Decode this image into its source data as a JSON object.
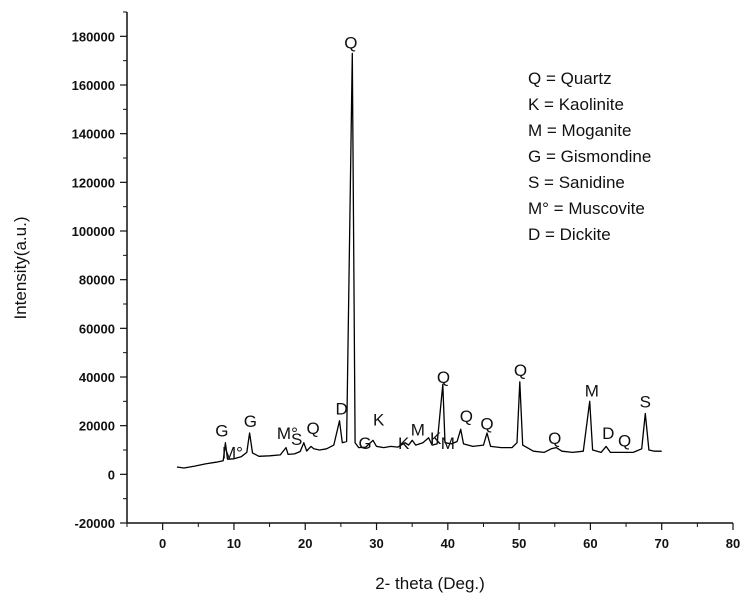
{
  "chart_data": {
    "type": "line",
    "xlabel": "2- theta (Deg.)",
    "ylabel": "Intensity(a.u.)",
    "xlim": [
      -5,
      80
    ],
    "ylim": [
      -20000,
      190000
    ],
    "x_ticks": [
      0,
      10,
      20,
      30,
      40,
      50,
      60,
      70,
      80
    ],
    "y_ticks": [
      -20000,
      0,
      20000,
      40000,
      60000,
      80000,
      100000,
      120000,
      140000,
      160000,
      180000
    ],
    "series": [
      {
        "color": "#000000",
        "points": [
          [
            2.0,
            3000
          ],
          [
            3.0,
            2600
          ],
          [
            4.5,
            3400
          ],
          [
            6.0,
            4300
          ],
          [
            7.5,
            5000
          ],
          [
            8.5,
            5600
          ],
          [
            8.8,
            13000
          ],
          [
            9.1,
            6200
          ],
          [
            10.0,
            6400
          ],
          [
            11.0,
            7200
          ],
          [
            11.8,
            9000
          ],
          [
            12.2,
            17000
          ],
          [
            12.6,
            8800
          ],
          [
            13.5,
            7400
          ],
          [
            15.0,
            7600
          ],
          [
            16.5,
            8000
          ],
          [
            17.3,
            11000
          ],
          [
            17.6,
            8200
          ],
          [
            18.5,
            8400
          ],
          [
            19.3,
            9400
          ],
          [
            19.8,
            13000
          ],
          [
            20.2,
            9600
          ],
          [
            20.8,
            11500
          ],
          [
            21.2,
            10500
          ],
          [
            22.0,
            10000
          ],
          [
            23.0,
            10500
          ],
          [
            24.0,
            12000
          ],
          [
            24.8,
            22000
          ],
          [
            25.2,
            13000
          ],
          [
            25.8,
            13500
          ],
          [
            26.6,
            173000
          ],
          [
            27.0,
            13000
          ],
          [
            27.5,
            11000
          ],
          [
            28.5,
            11200
          ],
          [
            29.5,
            14000
          ],
          [
            30.0,
            11500
          ],
          [
            31.0,
            11000
          ],
          [
            32.0,
            11500
          ],
          [
            33.0,
            11200
          ],
          [
            34.0,
            13000
          ],
          [
            34.5,
            12000
          ],
          [
            35.0,
            14000
          ],
          [
            35.5,
            12000
          ],
          [
            36.5,
            13000
          ],
          [
            37.3,
            15000
          ],
          [
            37.8,
            12000
          ],
          [
            38.5,
            12500
          ],
          [
            39.3,
            37000
          ],
          [
            39.6,
            13000
          ],
          [
            40.5,
            12500
          ],
          [
            41.3,
            13500
          ],
          [
            41.8,
            18500
          ],
          [
            42.2,
            12500
          ],
          [
            43.5,
            11500
          ],
          [
            45.0,
            12000
          ],
          [
            45.5,
            17000
          ],
          [
            46.0,
            11500
          ],
          [
            47.5,
            11000
          ],
          [
            49.0,
            11000
          ],
          [
            49.7,
            13000
          ],
          [
            50.1,
            38000
          ],
          [
            50.5,
            12000
          ],
          [
            52.0,
            9500
          ],
          [
            53.5,
            9000
          ],
          [
            54.5,
            10500
          ],
          [
            55.2,
            11000
          ],
          [
            56.0,
            9500
          ],
          [
            57.5,
            9000
          ],
          [
            59.0,
            9500
          ],
          [
            59.9,
            30000
          ],
          [
            60.3,
            10000
          ],
          [
            61.5,
            9000
          ],
          [
            62.2,
            11500
          ],
          [
            62.8,
            9000
          ],
          [
            64.5,
            9000
          ],
          [
            66.0,
            9000
          ],
          [
            67.2,
            10500
          ],
          [
            67.7,
            25000
          ],
          [
            68.2,
            10000
          ],
          [
            69.0,
            9500
          ],
          [
            70.0,
            9500
          ]
        ]
      }
    ],
    "annotations": [
      {
        "text": "G",
        "x": 8.3,
        "y": 15500
      },
      {
        "text": "M°",
        "x": 9.8,
        "y": 6500
      },
      {
        "text": "G",
        "x": 12.3,
        "y": 19500
      },
      {
        "text": "M°",
        "x": 17.5,
        "y": 14500
      },
      {
        "text": "S",
        "x": 18.8,
        "y": 12000
      },
      {
        "text": "Q",
        "x": 21.1,
        "y": 16500
      },
      {
        "text": "D",
        "x": 25.1,
        "y": 24500
      },
      {
        "text": "Q",
        "x": 26.4,
        "y": 175000
      },
      {
        "text": "G",
        "x": 28.4,
        "y": 10500
      },
      {
        "text": "K",
        "x": 30.3,
        "y": 20000
      },
      {
        "text": "K",
        "x": 33.8,
        "y": 10500
      },
      {
        "text": "M",
        "x": 35.8,
        "y": 16000
      },
      {
        "text": "K",
        "x": 38.3,
        "y": 12500
      },
      {
        "text": "M",
        "x": 40.0,
        "y": 10500
      },
      {
        "text": "Q",
        "x": 39.4,
        "y": 37500
      },
      {
        "text": "Q",
        "x": 42.6,
        "y": 21500
      },
      {
        "text": "Q",
        "x": 45.5,
        "y": 18500
      },
      {
        "text": "Q",
        "x": 50.2,
        "y": 40500
      },
      {
        "text": "Q",
        "x": 55.0,
        "y": 12500
      },
      {
        "text": "M",
        "x": 60.2,
        "y": 32000
      },
      {
        "text": "D",
        "x": 62.5,
        "y": 14500
      },
      {
        "text": "Q",
        "x": 64.8,
        "y": 11500
      },
      {
        "text": "S",
        "x": 67.7,
        "y": 27500
      }
    ],
    "legend": {
      "placement": "top-right",
      "entries": [
        "Q = Quartz",
        "K = Kaolinite",
        "M = Moganite",
        "G = Gismondine",
        "S =  Sanidine",
        "M° = Muscovite",
        "D = Dickite"
      ]
    },
    "grid": false
  }
}
